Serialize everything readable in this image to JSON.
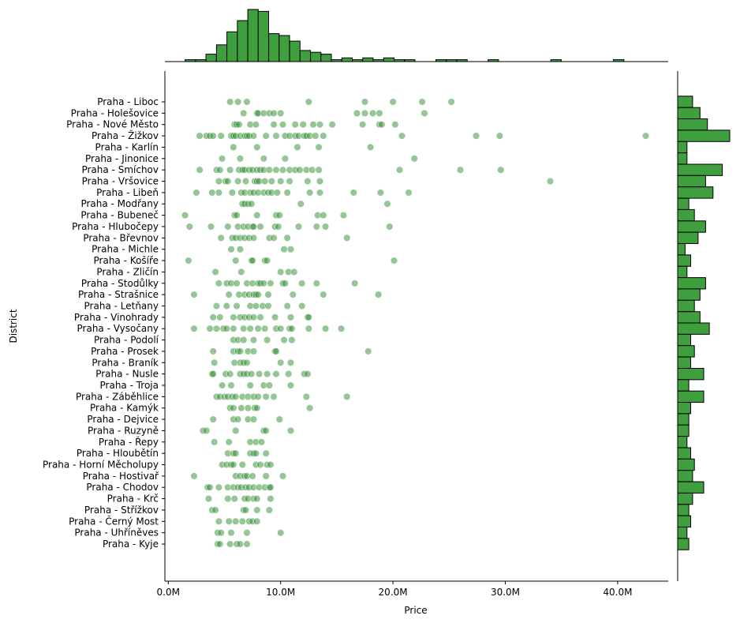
{
  "chart_data": {
    "type": "scatter",
    "subtype": "jointplot",
    "title": "",
    "xlabel": "Price",
    "ylabel": "District",
    "xlim": [
      -0.3,
      44.5
    ],
    "x_unit_divisor": 1000000,
    "x_ticks": [
      0,
      10,
      20,
      30,
      40
    ],
    "x_tick_labels": [
      "0.0M",
      "10.0M",
      "20.0M",
      "30.0M",
      "40.0M"
    ],
    "grid": false,
    "color": "#2e8b2e",
    "bar_color": "#3f9f3f",
    "categories": [
      "Praha - Liboc",
      "Praha - Holešovice",
      "Praha - Nové Město",
      "Praha - Žižkov",
      "Praha - Karlín",
      "Praha - Jinonice",
      "Praha - Smíchov",
      "Praha - Vršovice",
      "Praha - Libeň",
      "Praha - Modřany",
      "Praha - Bubeneč",
      "Praha - Hlubočepy",
      "Praha - Břevnov",
      "Praha - Michle",
      "Praha - Košíře",
      "Praha - Zličín",
      "Praha - Stodůlky",
      "Praha - Strašnice",
      "Praha - Letňany",
      "Praha - Vinohrady",
      "Praha - Vysočany",
      "Praha - Podolí",
      "Praha - Prosek",
      "Praha - Braník",
      "Praha - Nusle",
      "Praha - Troja",
      "Praha - Záběhlice",
      "Praha - Kamýk",
      "Praha - Dejvice",
      "Praha - Ruzyně",
      "Praha - Řepy",
      "Praha - Hloubětín",
      "Praha - Horní Měcholupy",
      "Praha - Hostivař",
      "Praha - Chodov",
      "Praha - Krč",
      "Praha - Střížkov",
      "Praha - Černý Most",
      "Praha - Uhříněves",
      "Praha - Kyje"
    ],
    "points": [
      [
        5.5,
        6.2,
        7.0,
        12.5,
        17.5,
        20.0,
        22.6,
        25.2
      ],
      [
        6.7,
        7.9,
        8.0,
        8.5,
        9.0,
        9.4,
        10.0,
        16.8,
        17.5,
        18.2,
        18.8,
        22.8
      ],
      [
        5.9,
        6.1,
        6.3,
        7.3,
        7.8,
        9.4,
        10.2,
        11.3,
        12.0,
        12.9,
        13.5,
        14.6,
        17.3,
        18.8,
        19.0,
        20.2
      ],
      [
        2.8,
        3.4,
        3.7,
        4.0,
        4.7,
        5.6,
        5.8,
        6.0,
        6.4,
        6.8,
        7.0,
        7.2,
        7.6,
        8.7,
        9.6,
        10.4,
        10.8,
        11.3,
        11.6,
        12.1,
        12.3,
        12.6,
        13.1,
        13.8,
        20.8,
        27.4,
        29.5,
        42.5
      ],
      [
        5.8,
        7.9,
        11.5,
        13.4,
        18.0
      ],
      [
        4.8,
        6.4,
        8.5,
        10.4,
        21.9
      ],
      [
        2.8,
        4.3,
        4.6,
        5.5,
        6.3,
        6.6,
        6.8,
        7.2,
        7.5,
        7.9,
        8.2,
        8.5,
        9.0,
        9.6,
        10.2,
        10.8,
        11.3,
        11.7,
        12.3,
        12.8,
        13.4,
        20.6,
        26.0,
        29.6
      ],
      [
        4.5,
        5.1,
        5.3,
        6.2,
        6.9,
        7.7,
        7.9,
        8.1,
        8.6,
        9.2,
        10.0,
        10.8,
        12.4,
        13.5,
        34.0
      ],
      [
        2.5,
        3.9,
        4.5,
        5.7,
        6.5,
        6.8,
        7.3,
        7.6,
        8.0,
        8.5,
        8.9,
        9.2,
        9.7,
        10.6,
        12.6,
        13.5,
        16.5,
        18.9,
        21.4
      ],
      [
        6.6,
        6.8,
        7.1,
        7.4,
        11.8,
        19.5
      ],
      [
        1.5,
        5.9,
        6.1,
        7.9,
        9.6,
        9.9,
        13.3,
        13.8,
        15.6
      ],
      [
        1.9,
        3.8,
        5.3,
        6.2,
        6.7,
        7.1,
        7.5,
        7.6,
        8.2,
        9.5,
        9.8,
        11.6,
        13.2,
        14.0,
        19.7
      ],
      [
        4.7,
        5.7,
        6.0,
        6.4,
        6.8,
        7.2,
        7.6,
        9.0,
        9.4,
        10.6,
        15.9
      ],
      [
        5.6,
        6.4,
        10.3,
        10.9
      ],
      [
        1.8,
        6.0,
        7.4,
        7.5,
        8.6,
        8.8,
        20.1
      ],
      [
        4.2,
        6.5,
        10.0,
        10.7,
        11.2
      ],
      [
        4.5,
        5.2,
        5.6,
        6.1,
        7.0,
        7.5,
        8.0,
        8.2,
        8.5,
        9.1,
        10.2,
        10.4,
        11.9,
        13.2,
        16.6
      ],
      [
        2.3,
        5.4,
        6.3,
        6.8,
        7.2,
        7.6,
        7.8,
        8.0,
        8.9,
        11.1,
        13.8,
        18.7
      ],
      [
        4.3,
        5.2,
        6.1,
        7.3,
        7.8,
        8.4,
        8.9,
        10.6,
        11.9
      ],
      [
        4.0,
        4.6,
        5.8,
        6.4,
        6.8,
        7.2,
        7.6,
        8.2,
        9.5,
        10.9,
        12.4,
        12.5
      ],
      [
        2.3,
        3.7,
        4.3,
        4.9,
        5.2,
        5.8,
        6.7,
        7.3,
        8.0,
        8.6,
        9.6,
        10.0,
        10.8,
        11.0,
        12.5,
        14.0,
        15.4
      ],
      [
        5.8,
        6.2,
        6.7,
        7.6,
        8.8,
        10.3,
        11.0
      ],
      [
        4.0,
        5.8,
        6.2,
        6.4,
        7.1,
        7.6,
        9.5,
        9.6,
        17.8
      ],
      [
        4.1,
        5.9,
        6.4,
        6.7,
        7.0,
        10.0,
        10.9
      ],
      [
        3.9,
        4.0,
        5.1,
        5.5,
        6.4,
        6.7,
        7.0,
        7.4,
        8.1,
        8.8,
        9.6,
        10.7,
        12.1,
        12.4
      ],
      [
        4.8,
        5.6,
        7.3,
        8.5,
        9.0,
        10.9
      ],
      [
        4.3,
        4.6,
        5.0,
        5.3,
        5.7,
        6.0,
        6.6,
        7.1,
        7.6,
        8.0,
        8.7,
        9.4,
        12.3,
        15.9
      ],
      [
        5.5,
        5.8,
        6.5,
        7.1,
        7.7,
        7.9,
        12.6
      ],
      [
        4.0,
        5.8,
        6.2,
        7.1,
        7.6,
        9.9
      ],
      [
        3.1,
        3.4,
        6.0,
        8.5,
        8.7,
        10.9
      ],
      [
        4.1,
        5.4,
        7.3,
        7.8,
        8.3
      ],
      [
        5.3,
        5.8,
        6.0,
        7.3,
        7.6,
        7.8,
        8.7
      ],
      [
        4.8,
        5.2,
        5.6,
        5.8,
        6.6,
        7.8,
        8.2,
        8.8,
        9.1
      ],
      [
        2.3,
        6.0,
        6.4,
        6.8,
        7.0,
        7.5,
        8.7,
        10.2
      ],
      [
        3.5,
        3.7,
        4.5,
        5.3,
        5.8,
        6.2,
        6.5,
        6.9,
        7.2,
        7.6,
        8.1,
        8.6,
        9.0,
        9.1
      ],
      [
        3.6,
        5.3,
        5.9,
        6.8,
        7.1,
        7.6,
        7.9,
        9.1
      ],
      [
        3.9,
        4.2,
        6.7,
        6.9,
        7.9,
        9.0
      ],
      [
        4.5,
        5.4,
        6.0,
        6.6,
        7.2,
        7.5,
        7.9
      ],
      [
        4.4,
        4.7,
        5.6,
        7.0,
        10.0
      ],
      [
        4.4,
        4.6,
        5.5,
        6.1,
        6.4,
        7.0
      ]
    ],
    "x_hist": {
      "bin_start": 1.5,
      "bin_width": 0.93,
      "counts": [
        1,
        1,
        4,
        9,
        16,
        22,
        28,
        27,
        15,
        14,
        11,
        6,
        5,
        4,
        1,
        2,
        1,
        2,
        1,
        2,
        1,
        1,
        0,
        0,
        1,
        1,
        1,
        0,
        0,
        1,
        0,
        0,
        0,
        0,
        0,
        1,
        0,
        0,
        0,
        0,
        0,
        1
      ]
    }
  }
}
